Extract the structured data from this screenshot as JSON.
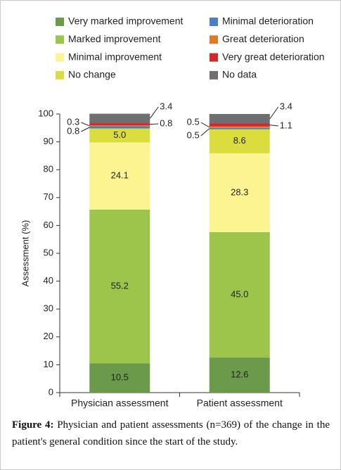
{
  "chart_data": {
    "type": "stacked_bar",
    "y_label": "Assessment (%)",
    "categories": [
      "Physician assessment",
      "Patient assessment"
    ],
    "ylim": [
      0,
      100
    ],
    "yticks": [
      0,
      10,
      20,
      30,
      40,
      50,
      60,
      70,
      80,
      90,
      100
    ],
    "series": [
      {
        "name": "Very marked improvement",
        "color": "#6b9a4b",
        "values": [
          10.5,
          12.6
        ],
        "value_labels": [
          "10.5",
          "12.6"
        ]
      },
      {
        "name": "Marked improvement",
        "color": "#9dc44b",
        "values": [
          55.2,
          45
        ],
        "value_labels": [
          "55.2",
          "45.0"
        ]
      },
      {
        "name": "Minimal improvement",
        "color": "#fcf490",
        "values": [
          24.1,
          28.3
        ],
        "value_labels": [
          "24.1",
          "28.3"
        ]
      },
      {
        "name": "No change",
        "color": "#dbdc3e",
        "values": [
          5,
          8.6
        ],
        "value_labels": [
          "5.0",
          "8.6"
        ]
      },
      {
        "name": "Minimal deterioration",
        "color": "#4a7fc2",
        "values": [
          0.8,
          0.5
        ],
        "value_labels": [
          "0.8",
          "0.5"
        ]
      },
      {
        "name": "Great deterioration",
        "color": "#e07a2c",
        "values": [
          0.3,
          0.5
        ],
        "value_labels": [
          "0.3",
          "0.5"
        ]
      },
      {
        "name": "Very great deterioration",
        "color": "#d3282a",
        "values": [
          0.8,
          1.1
        ],
        "value_labels": [
          "0.8",
          "1.1"
        ]
      },
      {
        "name": "No data",
        "color": "#6e6f71",
        "values": [
          3.4,
          3.4
        ],
        "value_labels": [
          "3.4",
          "3.4"
        ]
      }
    ]
  },
  "figure": {
    "label": "Figure 4:",
    "text": "Physician and patient assessments (n=369) of the change in the patient's general condition since the start of the study."
  }
}
